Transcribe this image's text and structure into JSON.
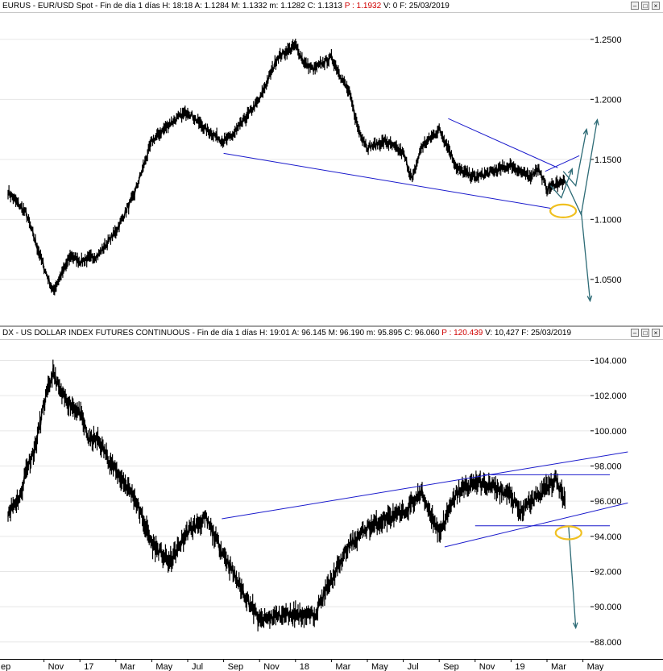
{
  "panels": [
    {
      "id": "eurusd",
      "title": {
        "symbol": "EURUS - EUR/USD Spot - Fin de día 1 días",
        "h": "H: 18:18",
        "a": "A: 1.1284",
        "m": "M: 1.1332",
        "mm": "m: 1.1282",
        "c": "C: 1.1313",
        "p": "P : 1.1932",
        "v": "V: 0",
        "f": "F: 25/03/2019"
      },
      "yticks": [
        "1.2500",
        "1.2000",
        "1.1500",
        "1.1000",
        "1.0500"
      ],
      "ytick_values": [
        1.25,
        1.2,
        1.15,
        1.1,
        1.05
      ],
      "ylim": [
        1.017,
        1.268
      ]
    },
    {
      "id": "dx",
      "title": {
        "symbol": "DX - US DOLLAR INDEX FUTURES CONTINUOUS - Fin de día 1 días",
        "h": "H: 19:01",
        "a": "A: 96.145",
        "m": "M: 96.190",
        "mm": "m: 95.895",
        "c": "C: 96.060",
        "p": "P : 120.439",
        "v": "V: 10,427",
        "f": "F: 25/03/2019"
      },
      "yticks": [
        "104.000",
        "102.000",
        "100.000",
        "98.000",
        "96.000",
        "94.000",
        "92.000",
        "90.000",
        "88.000"
      ],
      "ytick_values": [
        104,
        102,
        100,
        98,
        96,
        94,
        92,
        90,
        88
      ],
      "ylim": [
        87.4,
        104.8
      ]
    }
  ],
  "xaxis": {
    "labels": [
      "ep",
      "Nov",
      "17",
      "Mar",
      "May",
      "Jul",
      "Sep",
      "Nov",
      "18",
      "Mar",
      "May",
      "Jul",
      "Sep",
      "Nov",
      "19",
      "Mar",
      "May"
    ],
    "label_months": [
      0,
      2,
      4,
      6,
      8,
      10,
      12,
      14,
      16,
      18,
      20,
      22,
      24,
      26,
      28,
      30,
      32
    ]
  },
  "colors": {
    "price": "#000000",
    "trendline": "#1a1acc",
    "arrow": "#2d6b76",
    "highlight": "#f0c020",
    "grid": "#e6e6e6",
    "close_value": "#d00000"
  },
  "chart_data": [
    {
      "type": "line",
      "title": "EURUS - EUR/USD Spot - Fin de día 1 días",
      "xlabel": "",
      "ylabel": "",
      "ylim": [
        1.017,
        1.268
      ],
      "grid": true,
      "x_unit": "months since Sep 2016",
      "series": [
        {
          "name": "EUR/USD",
          "x": [
            0,
            1,
            2,
            2.5,
            3,
            3.5,
            4,
            5,
            6,
            7,
            8,
            9,
            10,
            11,
            12,
            12.5,
            13,
            14,
            15,
            16,
            16.5,
            17,
            18,
            19,
            19.5,
            20,
            21,
            22,
            22.5,
            23,
            24,
            24.5,
            25,
            26,
            27,
            28,
            29,
            29.5,
            30,
            30.5,
            31
          ],
          "y": [
            1.123,
            1.105,
            1.06,
            1.04,
            1.055,
            1.07,
            1.065,
            1.07,
            1.09,
            1.12,
            1.165,
            1.18,
            1.19,
            1.175,
            1.165,
            1.17,
            1.18,
            1.2,
            1.235,
            1.245,
            1.23,
            1.225,
            1.235,
            1.205,
            1.175,
            1.16,
            1.165,
            1.155,
            1.133,
            1.16,
            1.175,
            1.16,
            1.142,
            1.135,
            1.14,
            1.145,
            1.135,
            1.143,
            1.125,
            1.13,
            1.131
          ]
        }
      ],
      "trendlines": [
        {
          "x": [
            12,
            30.3
          ],
          "y": [
            1.155,
            1.109
          ]
        },
        {
          "x": [
            24.5,
            30.6
          ],
          "y": [
            1.184,
            1.143
          ]
        },
        {
          "x": [
            29.9,
            31.8
          ],
          "y": [
            1.14,
            1.153
          ]
        }
      ]
    },
    {
      "type": "line",
      "title": "DX - US DOLLAR INDEX FUTURES CONTINUOUS - Fin de día 1 días",
      "xlabel": "",
      "ylabel": "",
      "ylim": [
        87.4,
        104.8
      ],
      "grid": true,
      "x_unit": "months since Sep 2016",
      "series": [
        {
          "name": "DX",
          "x": [
            0,
            0.7,
            1,
            1.5,
            2,
            2.5,
            3,
            4,
            4.5,
            5,
            6,
            7,
            8,
            9,
            10,
            11,
            12,
            13,
            14,
            15,
            16,
            17,
            18,
            19,
            20,
            20.5,
            21,
            22,
            23,
            24,
            25,
            26,
            27,
            28,
            28.5,
            29,
            30,
            30.5,
            31
          ],
          "y": [
            95.4,
            96.3,
            97.8,
            99,
            101.5,
            103.3,
            102,
            101,
            99.5,
            99.5,
            97.7,
            96.3,
            93.6,
            92.5,
            94.3,
            95,
            93,
            91,
            89.2,
            89.5,
            89.6,
            89.5,
            91.5,
            93.5,
            94.5,
            94.7,
            95,
            95.3,
            96.5,
            94.2,
            96.5,
            97.1,
            96.8,
            96.3,
            95.3,
            95.9,
            96.8,
            97.2,
            96.06
          ]
        }
      ],
      "trendlines": [
        {
          "x": [
            11.9,
            34.5
          ],
          "y": [
            95,
            98.8
          ]
        },
        {
          "x": [
            24.3,
            34.5
          ],
          "y": [
            93.4,
            95.9
          ]
        },
        {
          "x": [
            26.5,
            33.5
          ],
          "y": [
            97.5,
            97.5
          ]
        },
        {
          "x": [
            26,
            33.5
          ],
          "y": [
            94.6,
            94.6
          ]
        }
      ]
    }
  ]
}
